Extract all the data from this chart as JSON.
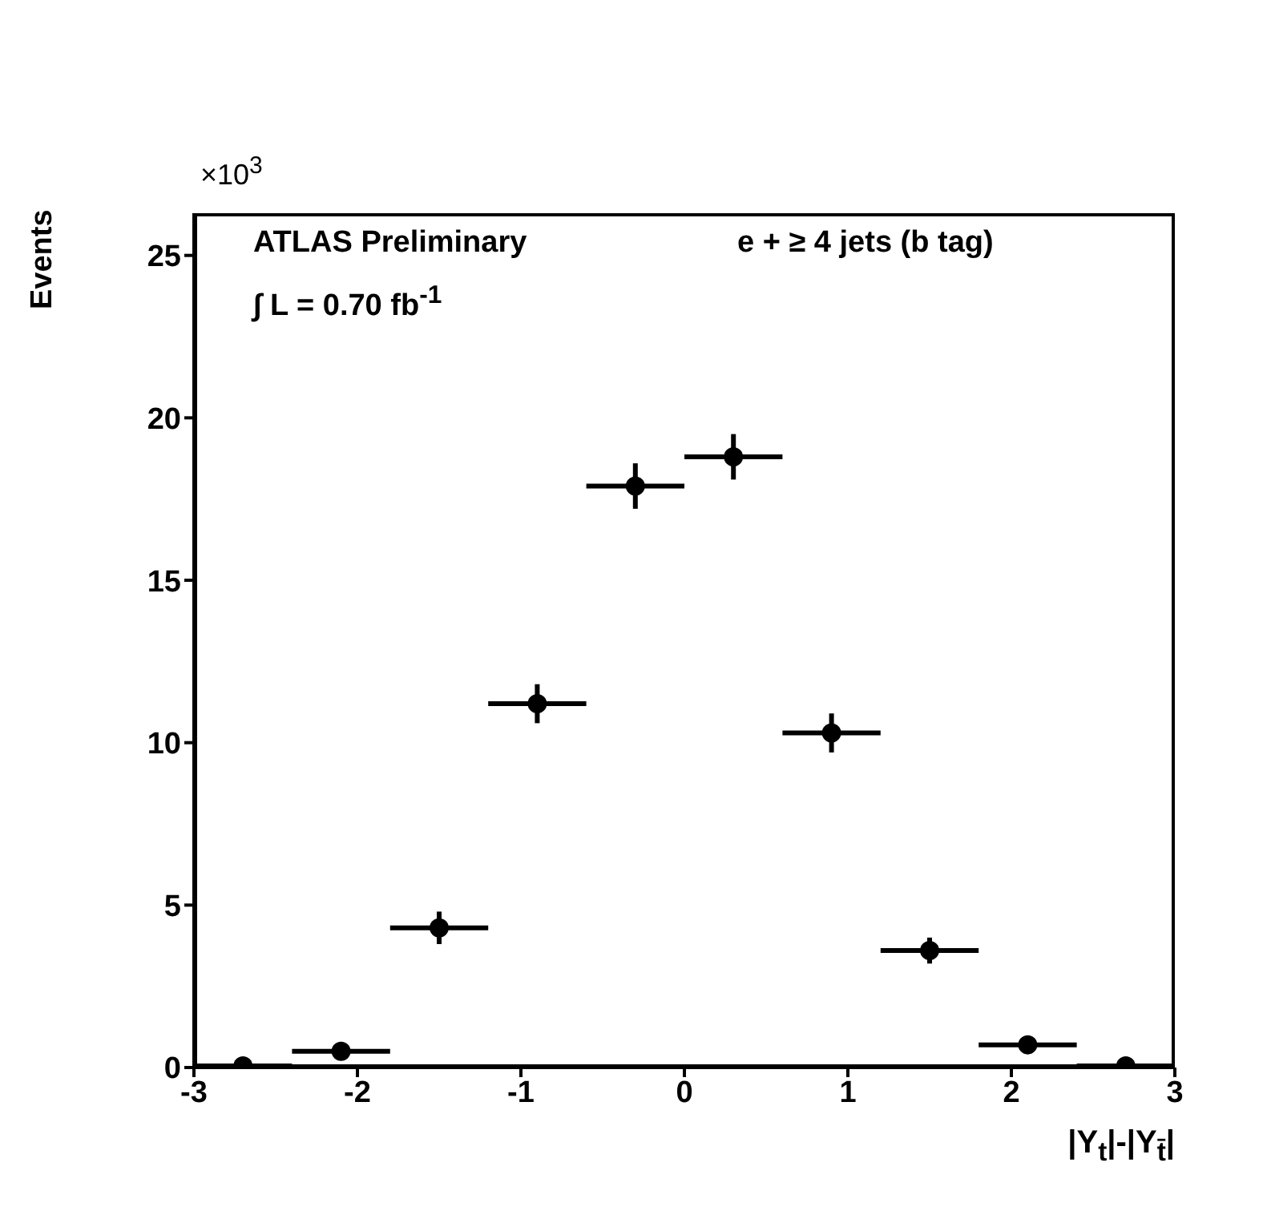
{
  "chart_data": {
    "type": "scatter",
    "xlabel": "|Y$_{t}$|-|Y$_{t̄}$|",
    "ylabel": "Events",
    "x": [
      -2.7,
      -2.1,
      -1.5,
      -0.9,
      -0.3,
      0.3,
      0.9,
      1.5,
      2.1,
      2.7
    ],
    "values": [
      0.05,
      0.5,
      4.3,
      11.2,
      17.9,
      18.8,
      10.3,
      3.6,
      0.7,
      0.05
    ],
    "errors": [
      null,
      null,
      0.5,
      0.6,
      0.7,
      0.7,
      0.6,
      0.4,
      null,
      null
    ],
    "xerrors": [
      0.3,
      0.3,
      0.3,
      0.3,
      0.3,
      0.3,
      0.3,
      0.3,
      0.3,
      0.3
    ],
    "color": "#000000",
    "marker": "circle",
    "grid": false,
    "legend": false,
    "xlim": [
      -3,
      3
    ],
    "xticks": [
      -3,
      -2,
      -1,
      0,
      1,
      2,
      3
    ],
    "ylim": [
      0,
      26.3
    ],
    "yticks": [
      0,
      5,
      10,
      15,
      20,
      25
    ],
    "annotations": [
      "×10$^{3}$",
      "ATLAS Preliminary",
      "∫ L = 0.70 fb$^{-1}$",
      "e + ≥ 4 jets (b tag)"
    ]
  }
}
